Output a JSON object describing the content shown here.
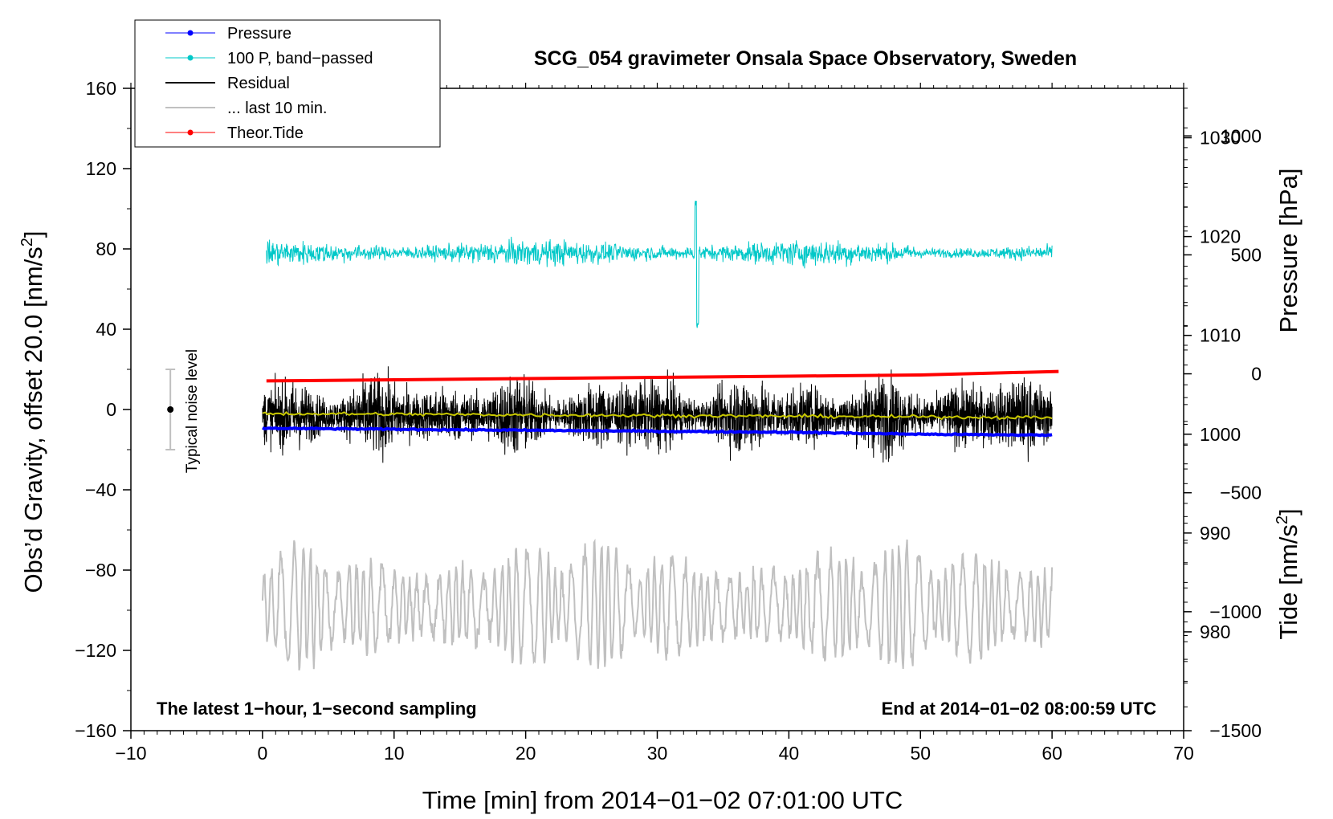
{
  "chart_data": {
    "type": "line",
    "title": "SCG_054 gravimeter Onsala Space Observatory, Sweden",
    "xlabel": "Time [min] from 2014−01−02 07:01:00 UTC",
    "ylabel_left": "Obs’d Gravity, offset 20.0 [nm/s²]",
    "ylabel_right_pressure": "Pressure [hPa]",
    "ylabel_right_tide": "Tide [nm/s²]",
    "xlim": [
      -10,
      70
    ],
    "ylim": [
      -160,
      160
    ],
    "pressure_axis_range": [
      970,
      1035
    ],
    "tide_axis_range": [
      -1500,
      1200
    ],
    "x_ticks": [
      "−10",
      "0",
      "10",
      "20",
      "30",
      "40",
      "50",
      "60",
      "70"
    ],
    "y_ticks": [
      "160",
      "120",
      "80",
      "40",
      "0",
      "−40",
      "−80",
      "−120",
      "−160"
    ],
    "pressure_ticks": [
      "1030",
      "1020",
      "1010",
      "1000",
      "990",
      "980"
    ],
    "tide_ticks": [
      "1000",
      "500",
      "0",
      "−500",
      "−1000",
      "−1500"
    ],
    "annotation_left": "The latest 1−hour, 1−second sampling",
    "annotation_right": "End at 2014−01−02 08:00:59 UTC",
    "noise_label": "Typical noise level",
    "noise_bar": {
      "x": -7,
      "center": 0,
      "half_range": 20
    },
    "legend": [
      {
        "label": "Pressure",
        "color": "#0000ff",
        "marker": true
      },
      {
        "label": "100 P, band−passed",
        "color": "#00c8c8",
        "marker": true
      },
      {
        "label": "Residual",
        "color": "#000000",
        "marker": false
      },
      {
        "label": "... last 10 min.",
        "color": "#c0c0c0",
        "marker": false
      },
      {
        "label": "Theor.Tide",
        "color": "#ff0000",
        "marker": true
      }
    ],
    "series": [
      {
        "name": "Pressure",
        "axis": "pressure",
        "color": "#0000ff",
        "x": [
          0,
          10,
          20,
          30,
          40,
          50,
          60
        ],
        "values": [
          1000.6,
          1000.5,
          1000.4,
          1000.3,
          1000.2,
          1000.0,
          999.9
        ]
      },
      {
        "name": "100 P, band−passed",
        "axis": "left",
        "color": "#00c8c8",
        "center": 78,
        "amplitude": 12,
        "x_range": [
          0.3,
          60
        ]
      },
      {
        "name": "Residual",
        "axis": "left",
        "color": "#000000",
        "center": -3,
        "amplitude": 25,
        "x_range": [
          0,
          60
        ]
      },
      {
        "name": "Residual smoothed",
        "axis": "left",
        "color": "#c8c800",
        "x": [
          0,
          60
        ],
        "values": [
          -2,
          -4
        ]
      },
      {
        "name": "... last 10 min.",
        "axis": "left",
        "color": "#c0c0c0",
        "center": -98,
        "amplitude": 30,
        "x_range": [
          0,
          60
        ]
      },
      {
        "name": "Theor.Tide",
        "axis": "tide",
        "color": "#ff0000",
        "x": [
          0.3,
          10,
          20,
          30,
          40,
          50,
          60.5
        ],
        "values": [
          -30,
          -25,
          -20,
          -15,
          -10,
          -5,
          10
        ]
      }
    ]
  }
}
